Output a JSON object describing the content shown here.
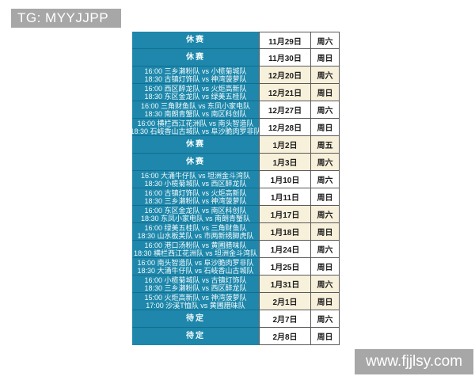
{
  "badges": {
    "tg": "TG: MYYJJPP",
    "site": "www.fjjlsy.com"
  },
  "colors": {
    "teal": "#1e87ab",
    "row_divider": "#116e90",
    "cream": "#f7f0da",
    "white": "#ffffff",
    "badge_gray": "#a7a7a7"
  },
  "labels": {
    "rest": "休赛",
    "tbd": "待定"
  },
  "schedule": {
    "rows": [
      {
        "matches": [
          "休赛"
        ],
        "date": "11月29日",
        "day": "周六",
        "shade": "white"
      },
      {
        "matches": [
          "休赛"
        ],
        "date": "11月30日",
        "day": "周日",
        "shade": "white"
      },
      {
        "matches": [
          "16:00 三乡濑粉队 vs 小榄菊城队",
          "18:30 古镇灯饰队 vs 神湾菠萝队"
        ],
        "date": "12月20日",
        "day": "周六",
        "shade": "cream"
      },
      {
        "matches": [
          "16:00 西区醉龙队 vs 火炬高新队",
          "18:30 东区金龙队 vs 绿美五桂队"
        ],
        "date": "12月21日",
        "day": "周日",
        "shade": "cream"
      },
      {
        "matches": [
          "16:00 三角财鱼队 vs 东凤小家电队",
          "18:30 南朗青蟹队 vs 南区科创队"
        ],
        "date": "12月27日",
        "day": "周六",
        "shade": "white"
      },
      {
        "matches": [
          "16:00 横栏西江花洲队 vs 南头智造队",
          "18:30 石岐香山古城队 vs 阜沙脆肉罗非队"
        ],
        "date": "12月28日",
        "day": "周日",
        "shade": "white"
      },
      {
        "matches": [
          "休赛"
        ],
        "date": "1月2日",
        "day": "周五",
        "shade": "cream"
      },
      {
        "matches": [
          "休赛"
        ],
        "date": "1月3日",
        "day": "周六",
        "shade": "cream"
      },
      {
        "matches": [
          "16:00 大涌牛仔队 vs 坦洲金斗湾队",
          "18:30 小榄菊城队 vs 西区醉龙队"
        ],
        "date": "1月10日",
        "day": "周六",
        "shade": "white"
      },
      {
        "matches": [
          "16:00 古镇灯饰队 vs 火炬高新队",
          "18:30 三乡濑粉队 vs 神湾菠萝队"
        ],
        "date": "1月11日",
        "day": "周日",
        "shade": "white"
      },
      {
        "matches": [
          "16:00 东区金龙队 vs 南区科创队",
          "18:30 东凤小家电队 vs 南朗青蟹队"
        ],
        "date": "1月17日",
        "day": "周六",
        "shade": "cream"
      },
      {
        "matches": [
          "16:00 绿美五桂队 vs 三角财鱼队",
          "18:30 山水板芙队 vs 市两新绣脚虎队"
        ],
        "date": "1月18日",
        "day": "周日",
        "shade": "cream"
      },
      {
        "matches": [
          "16:00 港口汤粉队 vs 黄圃腊味队",
          "18:30 横栏西江花洲队 vs 坦洲金斗湾队"
        ],
        "date": "1月24日",
        "day": "周六",
        "shade": "white"
      },
      {
        "matches": [
          "16:00 南头智造队 vs 阜沙脆肉罗非队",
          "18:30 大涌牛仔队 vs 石岐香山古城队"
        ],
        "date": "1月25日",
        "day": "周日",
        "shade": "white"
      },
      {
        "matches": [
          "16:00 小榄菊城队 vs 古镇灯饰队",
          "18:30 三乡濑粉队 vs 西区醉龙队"
        ],
        "date": "1月31日",
        "day": "周六",
        "shade": "cream"
      },
      {
        "matches": [
          "15:00 火炬高新队 vs 神湾菠萝队",
          "17:00 沙溪T恤队 vs 黄圃腊味队"
        ],
        "date": "2月1日",
        "day": "周日",
        "shade": "cream"
      },
      {
        "matches": [
          "待定"
        ],
        "date": "2月7日",
        "day": "周六",
        "shade": "white"
      },
      {
        "matches": [
          "待定"
        ],
        "date": "2月8日",
        "day": "周日",
        "shade": "white"
      }
    ]
  }
}
